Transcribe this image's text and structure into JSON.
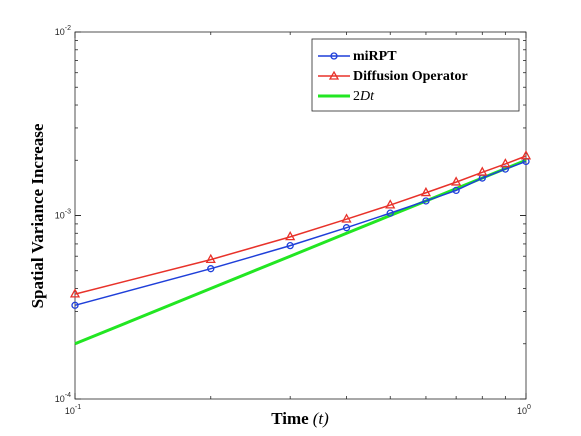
{
  "chart_data": {
    "type": "line",
    "xlabel_main": "Time",
    "xlabel_symbol": "(t)",
    "ylabel": "Spatial Variance Increase",
    "xscale": "log",
    "yscale": "log",
    "xlim": [
      0.1,
      1
    ],
    "ylim": [
      0.0001,
      0.01
    ],
    "x_tick_labels": [
      {
        "base": "10",
        "exp": "-1",
        "value": 0.1
      },
      {
        "base": "10",
        "exp": "0",
        "value": 1
      }
    ],
    "y_tick_labels": [
      {
        "base": "10",
        "exp": "-4",
        "value": 0.0001
      },
      {
        "base": "10",
        "exp": "-3",
        "value": 0.001
      },
      {
        "base": "10",
        "exp": "-2",
        "value": 0.01
      }
    ],
    "legend_position": "top-right",
    "x": [
      0.1,
      0.2,
      0.3,
      0.4,
      0.5,
      0.6,
      0.7,
      0.8,
      0.9,
      1.0
    ],
    "series": [
      {
        "name": "miRPT",
        "color": "#1f3fd9",
        "marker": "circle",
        "values": [
          0.000324,
          0.000513,
          0.000685,
          0.000858,
          0.00103,
          0.0012,
          0.00137,
          0.0016,
          0.00179,
          0.00197
        ]
      },
      {
        "name": "Diffusion Operator",
        "color": "#e8322a",
        "marker": "triangle",
        "values": [
          0.000373,
          0.000575,
          0.000765,
          0.000955,
          0.00114,
          0.00133,
          0.00152,
          0.00172,
          0.00191,
          0.00211
        ]
      },
      {
        "name_main": "2",
        "name_italic": "Dt",
        "color": "#22e622",
        "marker": "none",
        "values": [
          0.0002,
          0.0004,
          0.0006,
          0.0008,
          0.001,
          0.0012,
          0.0014,
          0.0016,
          0.0018,
          0.002
        ]
      }
    ]
  }
}
